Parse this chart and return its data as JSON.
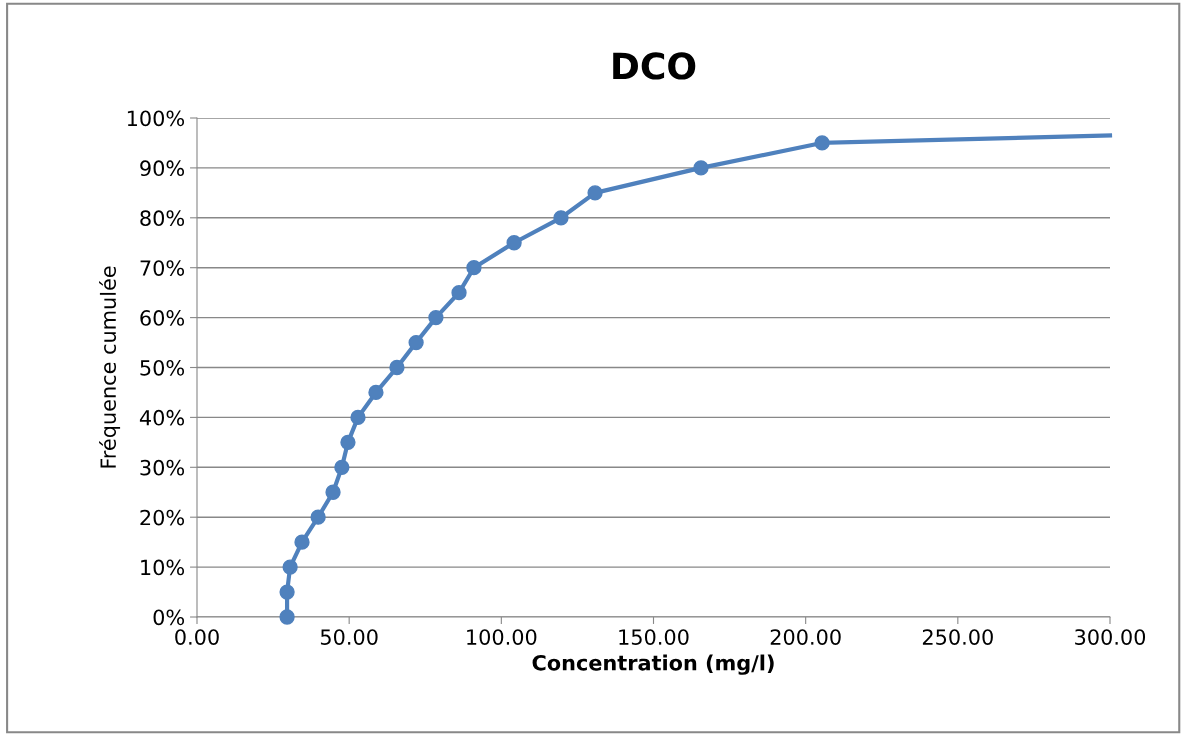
{
  "chart_data": {
    "type": "line",
    "title": "DCO",
    "xlabel": "Concentration (mg/l)",
    "ylabel": "Fréquence cumulée",
    "series": [
      {
        "color": "#4f81bd",
        "marker": "circle",
        "x": [
          29.6,
          29.6,
          30.6,
          34.5,
          39.8,
          44.7,
          47.6,
          49.6,
          52.9,
          58.8,
          65.7,
          72.0,
          78.5,
          86.1,
          91.0,
          104.2,
          119.6,
          130.8,
          165.6,
          205.4
        ],
        "values": [
          0,
          5,
          10,
          15,
          20,
          25,
          30,
          35,
          40,
          45,
          50,
          55,
          60,
          65,
          70,
          75,
          80,
          85,
          90,
          95
        ]
      },
      {
        "color": "#4f81bd",
        "marker": "none",
        "x": [
          205.4,
          300
        ],
        "values": [
          95,
          96.5
        ]
      }
    ],
    "xlim": [
      0,
      300
    ],
    "xticks": [
      {
        "value": 0,
        "label": "0.00"
      },
      {
        "value": 50,
        "label": "50.00"
      },
      {
        "value": 100,
        "label": "100.00"
      },
      {
        "value": 150,
        "label": "150.00"
      },
      {
        "value": 200,
        "label": "200.00"
      },
      {
        "value": 250,
        "label": "250.00"
      },
      {
        "value": 300,
        "label": "300.00"
      }
    ],
    "ylim": [
      0,
      100
    ],
    "yticks": [
      {
        "value": 0,
        "label": "0%"
      },
      {
        "value": 10,
        "label": "10%"
      },
      {
        "value": 20,
        "label": "20%"
      },
      {
        "value": 30,
        "label": "30%"
      },
      {
        "value": 40,
        "label": "40%"
      },
      {
        "value": 50,
        "label": "50%"
      },
      {
        "value": 60,
        "label": "60%"
      },
      {
        "value": 70,
        "label": "70%"
      },
      {
        "value": 80,
        "label": "80%"
      },
      {
        "value": 90,
        "label": "90%"
      },
      {
        "value": 100,
        "label": "100%"
      }
    ],
    "grid": "y",
    "legend": false
  }
}
